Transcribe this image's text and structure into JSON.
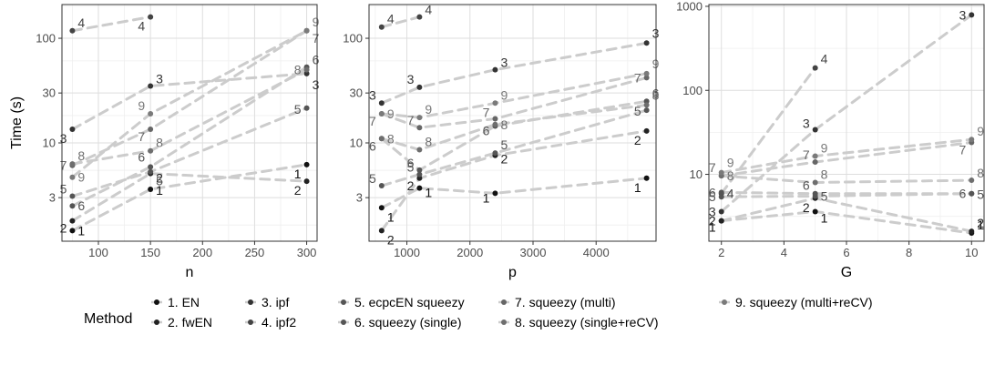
{
  "chart_data": [
    {
      "type": "scatter",
      "xlabel": "n",
      "ylabel": "Time (s)",
      "yscale": "log",
      "xlim": [
        65,
        310
      ],
      "ylim": [
        1.15,
        210
      ],
      "xticks": [
        100,
        150,
        200,
        250,
        300
      ],
      "yticks": [
        3,
        10,
        30,
        100
      ],
      "x": [
        75,
        150,
        300
      ],
      "series": [
        {
          "name": "1. EN",
          "label": "1",
          "values": [
            1.45,
            3.6,
            6.2
          ]
        },
        {
          "name": "2. fwEN",
          "label": "2",
          "values": [
            1.8,
            5.1,
            4.3
          ]
        },
        {
          "name": "3. ipf",
          "label": "3",
          "values": [
            13.5,
            35,
            46
          ]
        },
        {
          "name": "4. ipf2",
          "label": "4",
          "values": [
            118,
            160,
            null
          ]
        },
        {
          "name": "5. ecpcEN squeezy",
          "label": "5",
          "values": [
            3.1,
            5.3,
            21.5
          ]
        },
        {
          "name": "6. squeezy (single)",
          "label": "6",
          "values": [
            2.5,
            5.9,
            53
          ]
        },
        {
          "name": "7. squeezy (multi)",
          "label": "7",
          "values": [
            6.1,
            13.5,
            118
          ]
        },
        {
          "name": "8. squeezy (single+reCV)",
          "label": "8",
          "values": [
            6.3,
            8.4,
            50
          ]
        },
        {
          "name": "9. squeezy (multi+reCV)",
          "label": "9",
          "values": [
            4.7,
            19,
            118
          ]
        }
      ]
    },
    {
      "type": "scatter",
      "xlabel": "p",
      "ylabel": "",
      "yscale": "log",
      "xlim": [
        400,
        4950
      ],
      "ylim": [
        1.15,
        210
      ],
      "xticks": [
        1000,
        2000,
        3000,
        4000
      ],
      "yticks": [
        3,
        10,
        30,
        100
      ],
      "x": [
        600,
        1200,
        2400,
        4800
      ],
      "series": [
        {
          "name": "1. EN",
          "label": "1",
          "values": [
            2.4,
            3.7,
            3.3,
            4.6
          ]
        },
        {
          "name": "2. fwEN",
          "label": "2",
          "values": [
            1.45,
            4.6,
            7.6,
            13
          ]
        },
        {
          "name": "3. ipf",
          "label": "3",
          "values": [
            24,
            34,
            50,
            90
          ]
        },
        {
          "name": "4. ipf2",
          "label": "4",
          "values": [
            128,
            160,
            null,
            null
          ]
        },
        {
          "name": "5. ecpcEN squeezy",
          "label": "5",
          "values": [
            3.9,
            5.0,
            8.0,
            20.5
          ]
        },
        {
          "name": "6. squeezy (single)",
          "label": "6",
          "values": [
            11,
            5.5,
            14.5,
            25
          ]
        },
        {
          "name": "7. squeezy (multi)",
          "label": "7",
          "values": [
            19,
            14,
            17,
            42
          ]
        },
        {
          "name": "8. squeezy (single+reCV)",
          "label": "8",
          "values": [
            11,
            8.6,
            15,
            23
          ]
        },
        {
          "name": "9. squeezy (multi+reCV)",
          "label": "9",
          "values": [
            19,
            17.5,
            24,
            46
          ]
        }
      ]
    },
    {
      "type": "scatter",
      "xlabel": "G",
      "ylabel": "",
      "yscale": "log",
      "xlim": [
        1.6,
        10.4
      ],
      "ylim": [
        1.6,
        1050
      ],
      "xticks": [
        2,
        4,
        6,
        8,
        10
      ],
      "yticks": [
        10,
        100,
        1000
      ],
      "x": [
        2,
        5,
        10
      ],
      "series": [
        {
          "name": "1. EN",
          "label": "1",
          "values": [
            2.8,
            3.6,
            2.0
          ]
        },
        {
          "name": "2. fwEN",
          "label": "2",
          "values": [
            2.8,
            5.2,
            2.1
          ]
        },
        {
          "name": "3. ipf",
          "label": "3",
          "values": [
            3.6,
            34,
            790
          ]
        },
        {
          "name": "4. ipf2",
          "label": "4",
          "values": [
            5.9,
            185,
            null
          ]
        },
        {
          "name": "5. ecpcEN squeezy",
          "label": "5",
          "values": [
            5.4,
            5.5,
            5.9
          ]
        },
        {
          "name": "6. squeezy (single)",
          "label": "6",
          "values": [
            6.1,
            5.9,
            5.9
          ]
        },
        {
          "name": "7. squeezy (multi)",
          "label": "7",
          "values": [
            9.6,
            14,
            24
          ]
        },
        {
          "name": "8. squeezy (single+reCV)",
          "label": "8",
          "values": [
            9.6,
            8.0,
            8.5
          ]
        },
        {
          "name": "9. squeezy (multi+reCV)",
          "label": "9",
          "values": [
            10.5,
            16.5,
            26
          ]
        }
      ]
    }
  ],
  "legend": {
    "title": "Method",
    "entries": [
      "1. EN",
      "2. fwEN",
      "3. ipf",
      "4. ipf2",
      "5. ecpcEN squeezy",
      "6. squeezy (single)",
      "7. squeezy (multi)",
      "8. squeezy (single+reCV)",
      "9. squeezy (multi+reCV)"
    ],
    "colors": [
      "#111111",
      "#222222",
      "#333333",
      "#444444",
      "#555555",
      "#555555",
      "#666666",
      "#6e6e6e",
      "#7a7a7a"
    ],
    "placement": "bottom"
  },
  "style": {
    "panel_border": "#333333",
    "grid_major": "#dedede",
    "grid_minor": "#efefef",
    "connector": "#cccccc"
  }
}
